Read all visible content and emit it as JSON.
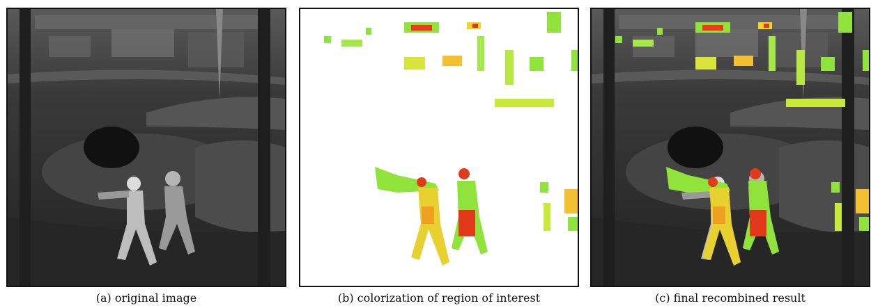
{
  "panels": [
    {
      "caption": "(a) original image"
    },
    {
      "caption": "(b) colorization of region of interest"
    },
    {
      "caption": "(c) final recombined result"
    }
  ]
}
